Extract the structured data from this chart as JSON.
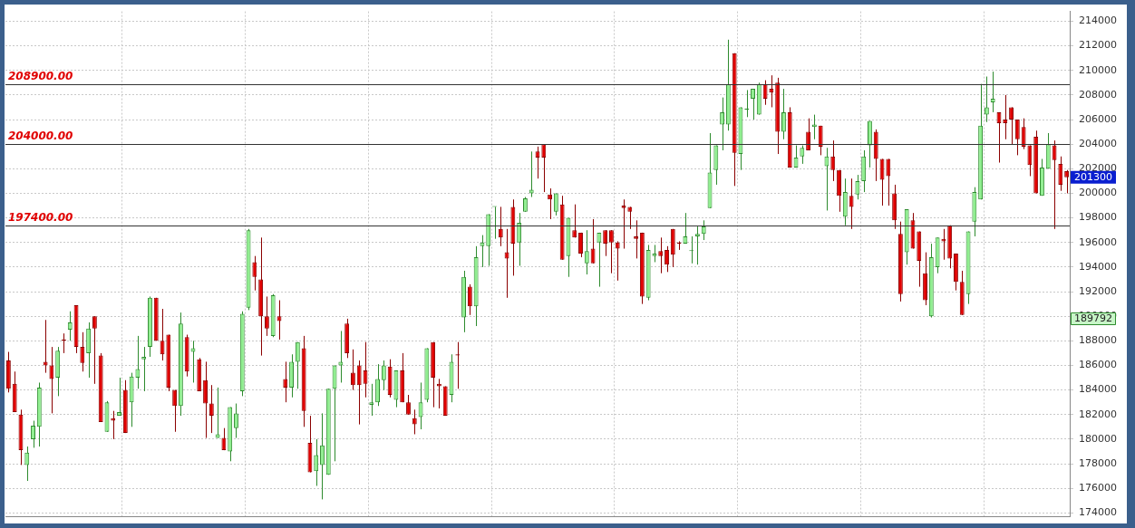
{
  "chart_data": {
    "type": "candlestick",
    "categories": [
      null,
      null,
      null,
      null,
      null,
      null,
      null,
      null,
      null,
      null,
      null,
      null,
      null,
      null,
      null,
      null,
      null,
      null,
      null,
      null,
      null,
      null,
      null,
      null,
      null,
      null,
      null,
      null,
      null,
      null,
      null,
      null,
      null,
      null,
      null,
      null,
      null,
      null,
      null,
      null,
      null,
      null,
      null,
      null,
      null,
      null,
      null,
      null,
      null,
      null,
      null,
      null,
      null,
      null,
      null,
      null,
      null,
      null,
      null,
      null,
      null,
      null,
      null,
      null,
      null,
      null,
      null,
      null,
      null,
      null,
      null,
      null,
      null,
      null,
      null,
      null,
      null,
      null,
      null,
      null,
      null,
      null,
      null,
      null,
      null,
      null,
      null,
      null,
      null,
      null,
      null,
      null,
      null,
      null,
      null,
      null,
      null,
      null,
      null,
      null,
      null,
      null,
      null,
      null,
      null,
      null,
      null,
      null,
      null,
      null,
      null,
      null,
      null,
      null,
      null,
      null,
      null,
      null,
      null,
      null,
      null,
      null,
      null,
      null,
      null,
      null,
      null,
      null,
      null,
      null,
      null,
      null,
      null,
      null,
      null,
      null,
      null,
      null,
      null,
      null,
      null,
      null,
      null,
      null,
      null,
      null,
      null,
      null,
      null,
      null,
      null,
      null,
      null,
      null,
      null,
      null,
      null,
      null,
      null,
      null,
      null,
      null,
      null,
      null,
      null,
      null,
      null,
      null,
      null,
      null,
      null,
      null,
      null
    ],
    "ohlc": [
      [
        186400,
        187100,
        183800,
        184100
      ],
      [
        184500,
        185500,
        182200,
        182200
      ],
      [
        182000,
        182400,
        177900,
        179100
      ],
      [
        177900,
        179400,
        176600,
        178900
      ],
      [
        180000,
        181500,
        179300,
        181100
      ],
      [
        181000,
        184600,
        179400,
        184200
      ],
      [
        186300,
        189700,
        185400,
        186000
      ],
      [
        186000,
        187500,
        182100,
        184900
      ],
      [
        185000,
        187500,
        183500,
        187200
      ],
      [
        188100,
        188600,
        187000,
        188000
      ],
      [
        188900,
        190400,
        188000,
        189500
      ],
      [
        190900,
        190900,
        187000,
        187500
      ],
      [
        187500,
        188700,
        185500,
        186200
      ],
      [
        187000,
        189500,
        185000,
        189000
      ],
      [
        190000,
        190000,
        184500,
        189000
      ],
      [
        186800,
        187000,
        181400,
        181400
      ],
      [
        180600,
        183100,
        180600,
        183000
      ],
      [
        181700,
        182300,
        180000,
        181500
      ],
      [
        181900,
        185000,
        181900,
        182200
      ],
      [
        184000,
        184800,
        180500,
        180500
      ],
      [
        183000,
        185400,
        181000,
        185100
      ],
      [
        185000,
        188400,
        184100,
        185700
      ],
      [
        186500,
        187500,
        183900,
        186700
      ],
      [
        187500,
        191600,
        186700,
        191500
      ],
      [
        191500,
        191500,
        188000,
        188000
      ],
      [
        188000,
        190600,
        186400,
        186900
      ],
      [
        188500,
        188500,
        183900,
        184200
      ],
      [
        184000,
        184000,
        180600,
        182700
      ],
      [
        182700,
        190300,
        181900,
        189400
      ],
      [
        188300,
        188500,
        185100,
        185500
      ],
      [
        187100,
        188000,
        184600,
        187400
      ],
      [
        186500,
        186600,
        183900,
        183900
      ],
      [
        184800,
        186300,
        180100,
        182900
      ],
      [
        182900,
        184400,
        180500,
        181900
      ],
      [
        180100,
        184200,
        180100,
        180400
      ],
      [
        180100,
        180900,
        179100,
        179100
      ],
      [
        179000,
        182600,
        178200,
        182600
      ],
      [
        180900,
        182900,
        180100,
        182100
      ],
      [
        183900,
        190400,
        183500,
        190200
      ],
      [
        190700,
        197100,
        190500,
        197000
      ],
      [
        194400,
        194900,
        192100,
        193200
      ],
      [
        193000,
        196400,
        186800,
        190000
      ],
      [
        190000,
        191600,
        188400,
        189000
      ],
      [
        188400,
        191800,
        188300,
        191700
      ],
      [
        190000,
        191300,
        188100,
        189600
      ],
      [
        184900,
        186300,
        183000,
        184200
      ],
      [
        184200,
        186900,
        183400,
        186300
      ],
      [
        186300,
        187900,
        184100,
        187900
      ],
      [
        187400,
        188400,
        181000,
        182300
      ],
      [
        179700,
        181900,
        177300,
        177300
      ],
      [
        177400,
        180000,
        176200,
        178700
      ],
      [
        177900,
        182100,
        175100,
        179500
      ],
      [
        177100,
        184100,
        177100,
        184100
      ],
      [
        184100,
        186000,
        178200,
        186000
      ],
      [
        186000,
        188800,
        184600,
        186300
      ],
      [
        189400,
        189800,
        186600,
        187000
      ],
      [
        185400,
        187300,
        184000,
        184400
      ],
      [
        186000,
        186400,
        181200,
        184400
      ],
      [
        185600,
        187900,
        183400,
        184500
      ],
      [
        182800,
        184500,
        181900,
        183000
      ],
      [
        183000,
        186100,
        182700,
        184900
      ],
      [
        184800,
        186400,
        184000,
        186000
      ],
      [
        185900,
        186500,
        183400,
        183600
      ],
      [
        183200,
        185600,
        182600,
        185600
      ],
      [
        185600,
        187000,
        183000,
        183000
      ],
      [
        183000,
        183600,
        182000,
        182000
      ],
      [
        181700,
        182400,
        180400,
        181200
      ],
      [
        181800,
        184600,
        180800,
        183000
      ],
      [
        183200,
        187400,
        183000,
        187400
      ],
      [
        187900,
        187900,
        182600,
        185000
      ],
      [
        184500,
        184900,
        182500,
        184300
      ],
      [
        184300,
        184300,
        181900,
        181900
      ],
      [
        183600,
        186900,
        183000,
        186300
      ],
      [
        186900,
        187900,
        184100,
        186800
      ],
      [
        189900,
        193700,
        188700,
        193200
      ],
      [
        192400,
        192600,
        190100,
        190800
      ],
      [
        190800,
        195700,
        189200,
        194800
      ],
      [
        195700,
        196600,
        194000,
        196000
      ],
      [
        195700,
        198300,
        194100,
        198300
      ],
      [
        198900,
        198900,
        196300,
        198900
      ],
      [
        197100,
        198900,
        195700,
        196400
      ],
      [
        195200,
        197100,
        191500,
        194700
      ],
      [
        198900,
        199500,
        193300,
        195900
      ],
      [
        196000,
        198400,
        194100,
        197600
      ],
      [
        198500,
        199700,
        198500,
        199600
      ],
      [
        200000,
        203400,
        199700,
        200300
      ],
      [
        203400,
        203800,
        201200,
        202900
      ],
      [
        204000,
        204000,
        200100,
        202900
      ],
      [
        199900,
        200400,
        197900,
        199500
      ],
      [
        198500,
        200000,
        198200,
        200000
      ],
      [
        199100,
        199800,
        194600,
        194600
      ],
      [
        194900,
        198000,
        193200,
        198000
      ],
      [
        197000,
        199100,
        196400,
        196400
      ],
      [
        196800,
        196800,
        194800,
        195100
      ],
      [
        194300,
        197000,
        193400,
        195300
      ],
      [
        195500,
        197900,
        194300,
        194300
      ],
      [
        196000,
        196800,
        192400,
        196800
      ],
      [
        197000,
        197000,
        194900,
        195900
      ],
      [
        197000,
        197000,
        193500,
        196000
      ],
      [
        196000,
        196100,
        192900,
        195500
      ],
      [
        199000,
        199500,
        195500,
        198800
      ],
      [
        198900,
        198900,
        197100,
        198500
      ],
      [
        196500,
        197800,
        194700,
        196300
      ],
      [
        196800,
        196800,
        191000,
        191600
      ],
      [
        191500,
        195800,
        191300,
        195400
      ],
      [
        194900,
        195800,
        194400,
        195100
      ],
      [
        195300,
        196400,
        193500,
        194900
      ],
      [
        195400,
        195700,
        193600,
        194200
      ],
      [
        197100,
        197100,
        194000,
        195000
      ],
      [
        196000,
        196100,
        195400,
        195900
      ],
      [
        195900,
        198400,
        195900,
        196500
      ],
      [
        195300,
        196500,
        194300,
        195300
      ],
      [
        196500,
        197300,
        194200,
        196700
      ],
      [
        196700,
        197800,
        196200,
        197300
      ],
      [
        198800,
        204900,
        198800,
        201700
      ],
      [
        201900,
        203900,
        200700,
        203900
      ],
      [
        205600,
        207800,
        203500,
        206600
      ],
      [
        205600,
        212500,
        205100,
        208900
      ],
      [
        211400,
        211400,
        200600,
        203300
      ],
      [
        203200,
        207000,
        201900,
        207000
      ],
      [
        206800,
        208400,
        206200,
        206900
      ],
      [
        207700,
        208500,
        206000,
        208500
      ],
      [
        206400,
        209000,
        206400,
        208900
      ],
      [
        208900,
        209200,
        207200,
        207700
      ],
      [
        208500,
        209600,
        207000,
        208200
      ],
      [
        209000,
        209400,
        203200,
        205000
      ],
      [
        205000,
        208500,
        204400,
        206600
      ],
      [
        206600,
        207000,
        202100,
        202100
      ],
      [
        202100,
        203900,
        202100,
        202900
      ],
      [
        203000,
        203900,
        202400,
        203700
      ],
      [
        205000,
        206100,
        203500,
        203500
      ],
      [
        205400,
        206400,
        204400,
        205600
      ],
      [
        205500,
        205500,
        203100,
        203800
      ],
      [
        202200,
        203700,
        198600,
        203000
      ],
      [
        203000,
        204300,
        201000,
        201900
      ],
      [
        201900,
        201900,
        198500,
        199800
      ],
      [
        198100,
        201200,
        197400,
        200100
      ],
      [
        199800,
        201200,
        197100,
        198900
      ],
      [
        199900,
        201500,
        199500,
        201000
      ],
      [
        201000,
        203500,
        200100,
        203000
      ],
      [
        203900,
        205900,
        202100,
        205900
      ],
      [
        205000,
        205200,
        201000,
        202800
      ],
      [
        202800,
        202800,
        199000,
        201100
      ],
      [
        202800,
        202800,
        199000,
        201400
      ],
      [
        200000,
        200700,
        197100,
        197800
      ],
      [
        196700,
        197700,
        191200,
        191800
      ],
      [
        195200,
        198700,
        194200,
        198700
      ],
      [
        197800,
        198400,
        195500,
        195500
      ],
      [
        196900,
        196900,
        192400,
        194500
      ],
      [
        193500,
        195200,
        190900,
        191300
      ],
      [
        190000,
        195900,
        189900,
        194800
      ],
      [
        194000,
        196400,
        193500,
        196400
      ],
      [
        196300,
        197100,
        194600,
        196100
      ],
      [
        197400,
        197400,
        193900,
        194700
      ],
      [
        195100,
        195100,
        192100,
        192800
      ],
      [
        192800,
        193700,
        190100,
        190100
      ],
      [
        191800,
        196900,
        191000,
        196900
      ],
      [
        197700,
        200500,
        196500,
        200100
      ],
      [
        199500,
        208900,
        199500,
        205500
      ],
      [
        206400,
        209500,
        205800,
        207000
      ],
      [
        207400,
        209900,
        206600,
        207700
      ],
      [
        206600,
        206600,
        202500,
        205700
      ],
      [
        206000,
        208000,
        204400,
        205700
      ],
      [
        207000,
        207000,
        204000,
        206000
      ],
      [
        206000,
        206000,
        203100,
        204400
      ],
      [
        205400,
        206100,
        203600,
        203800
      ],
      [
        203900,
        203900,
        201400,
        202300
      ],
      [
        204600,
        205100,
        200000,
        200000
      ],
      [
        199800,
        202800,
        199800,
        202100
      ],
      [
        202000,
        204900,
        202000,
        204000
      ],
      [
        203900,
        204300,
        197100,
        202700
      ],
      [
        202400,
        203000,
        200200,
        200700
      ],
      [
        201800,
        201900,
        200000,
        201300
      ]
    ],
    "ylim": [
      173700,
      214800
    ],
    "yticks": [
      174000,
      176000,
      178000,
      180000,
      182000,
      184000,
      186000,
      188000,
      190000,
      192000,
      194000,
      196000,
      198000,
      200000,
      202000,
      204000,
      206000,
      208000,
      210000,
      212000,
      214000
    ],
    "ref_lines": [
      {
        "axis": "y",
        "value": 208900,
        "label": "208900.00",
        "color": "#333333"
      },
      {
        "axis": "y",
        "value": 204000,
        "label": "204000.00",
        "color": "#333333"
      },
      {
        "axis": "y",
        "value": 197400,
        "label": "197400.00",
        "color": "#333333"
      }
    ],
    "annotations": [
      "201300",
      "189792"
    ],
    "grid": true,
    "legend": false,
    "tick_labels": "y"
  }
}
